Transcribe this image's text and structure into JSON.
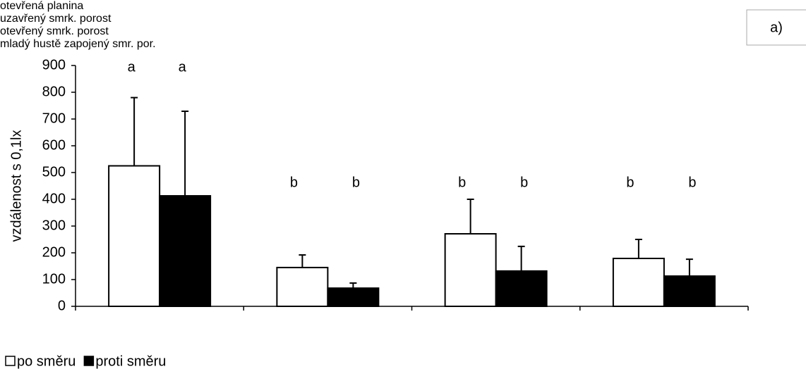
{
  "chart_data": {
    "type": "bar",
    "panel_label": "a)",
    "y_label": "vzdálenost s 0,1lx",
    "categories": [
      "otevřená planina",
      "uzavřený smrk. porost",
      "otevřený smrk. porost",
      "mladý hustě zapojený smr. por."
    ],
    "series": [
      {
        "name": "po směru",
        "color": "#ffffff",
        "values": [
          525,
          145,
          271,
          179
        ],
        "errors": [
          255,
          47,
          129,
          71
        ],
        "annotations": [
          "a",
          "b",
          "b",
          "b"
        ]
      },
      {
        "name": "proti směru",
        "color": "#000000",
        "values": [
          413,
          68,
          132,
          113
        ],
        "errors": [
          316,
          19,
          92,
          63
        ],
        "annotations": [
          "a",
          "b",
          "b",
          "b"
        ]
      }
    ],
    "ylim": [
      0,
      900
    ],
    "yticks": [
      0,
      100,
      200,
      300,
      400,
      500,
      600,
      700,
      800,
      900
    ],
    "legend": "bottom-left"
  }
}
